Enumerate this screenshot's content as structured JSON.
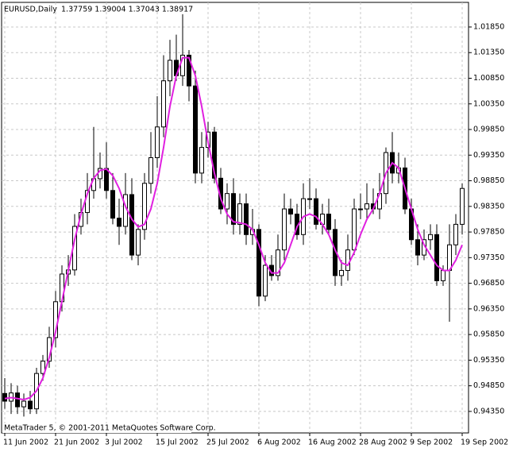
{
  "chart_data": {
    "type": "candlestick",
    "title": "EURUSD,Daily",
    "quote": "1.37759 1.39004 1.37043 1.38917",
    "footer": "MetaTrader 5, © 2001-2011 MetaQuotes Software Corp.",
    "categories": [
      "11 Jun 2002",
      null,
      null,
      null,
      null,
      null,
      null,
      null,
      "21 Jun 2002",
      null,
      null,
      null,
      null,
      null,
      null,
      null,
      "3 Jul 2002",
      null,
      null,
      null,
      null,
      null,
      null,
      null,
      "15 Jul 2002",
      null,
      null,
      null,
      null,
      null,
      null,
      null,
      "25 Jul 2002",
      null,
      null,
      null,
      null,
      null,
      null,
      null,
      "6 Aug 2002",
      null,
      null,
      null,
      null,
      null,
      null,
      null,
      "16 Aug 2002",
      null,
      null,
      null,
      null,
      null,
      null,
      null,
      "28 Aug 2002",
      null,
      null,
      null,
      null,
      null,
      null,
      null,
      "9 Sep 2002",
      null,
      null,
      null,
      null,
      null,
      null,
      null,
      "19 Sep 2002"
    ],
    "open": [
      0.947,
      0.9455,
      0.9471,
      0.9444,
      0.9455,
      0.944,
      0.9509,
      0.9533,
      0.9579,
      0.9649,
      0.9703,
      0.9711,
      0.9796,
      0.9823,
      0.9866,
      0.9889,
      0.9909,
      0.9866,
      0.9812,
      0.9796,
      0.9858,
      0.974,
      0.979,
      0.988,
      0.993,
      0.999,
      1.008,
      1.012,
      1.009,
      1.013,
      1.007,
      0.99,
      0.995,
      0.998,
      0.989,
      0.983,
      0.986,
      0.98,
      0.984,
      0.978,
      0.979,
      0.966,
      0.972,
      0.97,
      0.975,
      0.983,
      0.982,
      0.978,
      0.985,
      0.985,
      0.98,
      0.982,
      0.979,
      0.97,
      0.971,
      0.975,
      0.983,
      0.983,
      0.984,
      0.983,
      0.986,
      0.994,
      0.99,
      0.991,
      0.983,
      0.977,
      0.974,
      0.977,
      0.978,
      0.969,
      0.971,
      0.976,
      0.98
    ],
    "high": [
      0.95,
      0.949,
      0.9485,
      0.947,
      0.9475,
      0.952,
      0.9545,
      0.96,
      0.967,
      0.972,
      0.974,
      0.982,
      0.985,
      0.99,
      0.999,
      0.994,
      0.996,
      0.99,
      0.985,
      0.99,
      0.989,
      0.98,
      0.99,
      0.998,
      1.005,
      1.013,
      1.016,
      1.017,
      1.021,
      1.014,
      1.01,
      0.998,
      1.0,
      0.999,
      0.991,
      0.988,
      0.989,
      0.986,
      0.986,
      0.983,
      0.98,
      0.974,
      0.974,
      0.978,
      0.986,
      0.985,
      0.984,
      0.988,
      0.989,
      0.987,
      0.984,
      0.985,
      0.981,
      0.973,
      0.978,
      0.985,
      0.986,
      0.988,
      0.987,
      0.99,
      0.995,
      0.998,
      0.994,
      0.993,
      0.985,
      0.98,
      0.979,
      0.98,
      0.98,
      0.972,
      0.98,
      0.982,
      0.988
    ],
    "low": [
      0.944,
      0.943,
      0.943,
      0.9425,
      0.943,
      0.943,
      0.9495,
      0.952,
      0.956,
      0.963,
      0.968,
      0.97,
      0.978,
      0.98,
      0.985,
      0.987,
      0.985,
      0.98,
      0.976,
      0.978,
      0.973,
      0.972,
      0.977,
      0.986,
      0.991,
      0.997,
      1.005,
      1.008,
      1.007,
      1.004,
      0.988,
      0.988,
      0.993,
      0.988,
      0.982,
      0.98,
      0.978,
      0.978,
      0.976,
      0.976,
      0.964,
      0.965,
      0.969,
      0.969,
      0.973,
      0.98,
      0.977,
      0.976,
      0.983,
      0.979,
      0.978,
      0.978,
      0.968,
      0.968,
      0.969,
      0.974,
      0.981,
      0.981,
      0.982,
      0.981,
      0.984,
      0.988,
      0.988,
      0.982,
      0.976,
      0.972,
      0.973,
      0.975,
      0.968,
      0.968,
      0.961,
      0.974,
      0.978
    ],
    "close": [
      0.9455,
      0.9471,
      0.9444,
      0.9455,
      0.944,
      0.9509,
      0.9533,
      0.9579,
      0.9649,
      0.9703,
      0.9711,
      0.9796,
      0.9823,
      0.9866,
      0.9889,
      0.9909,
      0.9866,
      0.9812,
      0.9796,
      0.9858,
      0.974,
      0.979,
      0.988,
      0.993,
      0.999,
      1.008,
      1.012,
      1.009,
      1.013,
      1.007,
      0.99,
      0.995,
      0.998,
      0.989,
      0.983,
      0.986,
      0.98,
      0.984,
      0.978,
      0.979,
      0.966,
      0.972,
      0.97,
      0.975,
      0.983,
      0.982,
      0.978,
      0.985,
      0.985,
      0.98,
      0.982,
      0.979,
      0.97,
      0.971,
      0.975,
      0.983,
      0.983,
      0.984,
      0.983,
      0.986,
      0.994,
      0.99,
      0.991,
      0.983,
      0.977,
      0.974,
      0.977,
      0.978,
      0.969,
      0.971,
      0.976,
      0.98,
      0.987
    ],
    "line": {
      "color": "#e020e0",
      "values": [
        0.946,
        0.9462,
        0.946,
        0.9458,
        0.9462,
        0.9475,
        0.95,
        0.954,
        0.959,
        0.965,
        0.971,
        0.977,
        0.982,
        0.986,
        0.989,
        0.9905,
        0.9908,
        0.9895,
        0.987,
        0.9835,
        0.981,
        0.9795,
        0.98,
        0.983,
        0.988,
        0.995,
        1.003,
        1.009,
        1.0125,
        1.0125,
        1.009,
        1.003,
        0.996,
        0.99,
        0.985,
        0.982,
        0.9805,
        0.9803,
        0.98,
        0.979,
        0.976,
        0.9725,
        0.9705,
        0.9705,
        0.9725,
        0.976,
        0.9795,
        0.9815,
        0.982,
        0.9815,
        0.98,
        0.978,
        0.975,
        0.9725,
        0.972,
        0.9745,
        0.978,
        0.981,
        0.983,
        0.986,
        0.99,
        0.992,
        0.991,
        0.987,
        0.983,
        0.979,
        0.976,
        0.974,
        0.972,
        0.971,
        0.971,
        0.973,
        0.976
      ]
    },
    "ylim": [
      0.9393,
      1.0233
    ],
    "yticks": [
      {
        "value": 0.9435,
        "label": "0.94350"
      },
      {
        "value": 0.9485,
        "label": "0.94850"
      },
      {
        "value": 0.9535,
        "label": "0.95350"
      },
      {
        "value": 0.9585,
        "label": "0.95850"
      },
      {
        "value": 0.9635,
        "label": "0.96350"
      },
      {
        "value": 0.9685,
        "label": "0.96850"
      },
      {
        "value": 0.9735,
        "label": "0.97350"
      },
      {
        "value": 0.9785,
        "label": "0.97850"
      },
      {
        "value": 0.9835,
        "label": "0.98350"
      },
      {
        "value": 0.9885,
        "label": "0.98850"
      },
      {
        "value": 0.9935,
        "label": "0.99350"
      },
      {
        "value": 0.9985,
        "label": "0.99850"
      },
      {
        "value": 1.0035,
        "label": "1.00350"
      },
      {
        "value": 1.0085,
        "label": "1.00850"
      },
      {
        "value": 1.0135,
        "label": "1.01350"
      },
      {
        "value": 1.0185,
        "label": "1.01850"
      }
    ],
    "grid": true,
    "up_color": "#ffffff",
    "down_color": "#000000"
  }
}
